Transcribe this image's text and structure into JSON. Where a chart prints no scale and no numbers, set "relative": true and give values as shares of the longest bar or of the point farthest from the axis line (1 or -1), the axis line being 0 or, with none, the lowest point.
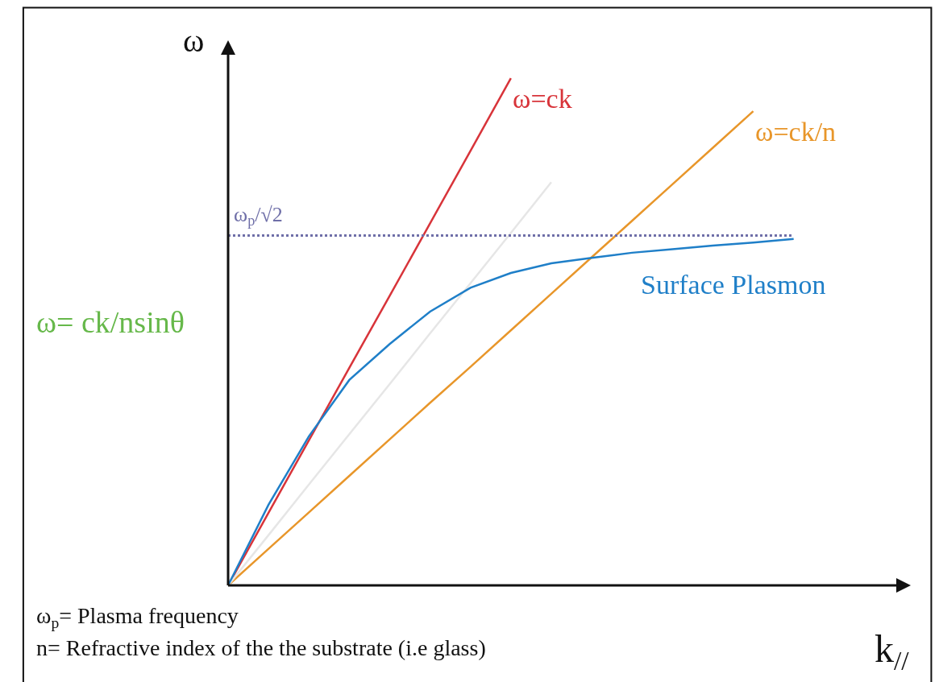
{
  "chart_data": {
    "type": "line",
    "relative": true,
    "xlabel": "k$_{//}$",
    "ylabel": "ω",
    "categories": [
      null,
      null,
      null,
      null,
      null,
      null,
      null,
      null,
      null,
      null,
      null,
      null,
      null,
      null,
      null
    ],
    "series": [
      {
        "name": "ω=ck",
        "color": "#d8343a",
        "values": [
          0,
          0.143,
          0.286,
          0.429,
          0.571,
          0.714,
          0.857,
          1.0,
          null,
          null,
          null,
          null,
          null,
          null,
          null
        ]
      },
      {
        "name": "ω=ck/n",
        "color": "#e8962a",
        "values": [
          0,
          0.072,
          0.144,
          0.216,
          0.288,
          0.36,
          0.431,
          0.503,
          0.575,
          0.647,
          0.719,
          0.791,
          0.863,
          0.935,
          null
        ]
      },
      {
        "color": "#e6e6e6",
        "values": [
          0,
          0.099,
          0.199,
          0.298,
          0.397,
          0.497,
          0.596,
          0.695,
          0.795,
          null,
          null,
          null,
          null,
          null,
          null
        ]
      },
      {
        "name": "Surface Plasmon",
        "color": "#1f7fc8",
        "values": [
          0,
          0.159,
          0.294,
          0.405,
          0.476,
          0.54,
          0.587,
          0.616,
          0.635,
          0.646,
          0.656,
          0.663,
          0.67,
          0.676,
          0.683
        ]
      }
    ],
    "ref_lines": [
      {
        "axis": "y",
        "value": 0.69,
        "label": "ω$_{p}$/√2",
        "color": "#6f6fa8",
        "line_style": "dotted"
      }
    ],
    "annotations": [
      "ω= ck/nsinθ",
      "ω$_{p}$= Plasma frequency",
      "n= Refractive index of the the substrate (i.e glass)"
    ],
    "grid": false,
    "legend": false,
    "line_style": "solid",
    "marker": "none"
  }
}
